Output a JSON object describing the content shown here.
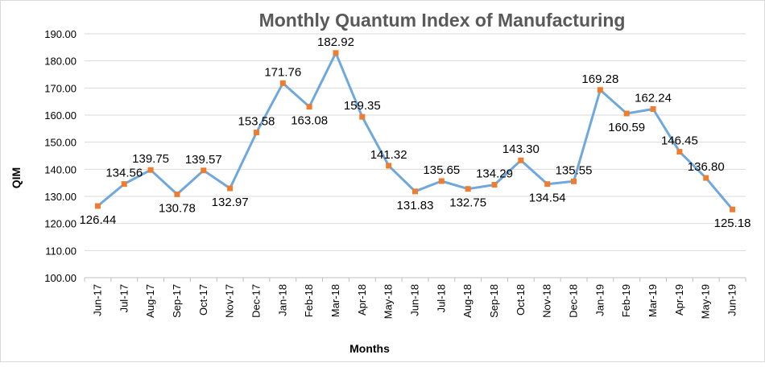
{
  "chart_data": {
    "type": "line",
    "title": "Monthly Quantum Index of Manufacturing",
    "xlabel": "Months",
    "ylabel": "QIM",
    "ylim": [
      100,
      190
    ],
    "yticks": [
      "100.00",
      "110.00",
      "120.00",
      "130.00",
      "140.00",
      "150.00",
      "160.00",
      "170.00",
      "180.00",
      "190.00"
    ],
    "grid": true,
    "legend": "none",
    "categories": [
      "Jun-17",
      "Jul-17",
      "Aug-17",
      "Sep-17",
      "Oct-17",
      "Nov-17",
      "Dec-17",
      "Jan-18",
      "Feb-18",
      "Mar-18",
      "Apr-18",
      "May-18",
      "Jun-18",
      "Jul-18",
      "Aug-18",
      "Sep-18",
      "Oct-18",
      "Nov-18",
      "Dec-18",
      "Jan-19",
      "Feb-19",
      "Mar-19",
      "Apr-19",
      "May-19",
      "Jun-19"
    ],
    "series": [
      {
        "values": [
          126.44,
          134.56,
          139.75,
          130.78,
          139.57,
          132.97,
          153.58,
          171.76,
          163.08,
          182.92,
          159.35,
          141.32,
          131.83,
          135.65,
          132.75,
          134.29,
          143.3,
          134.54,
          135.55,
          169.28,
          160.59,
          162.24,
          146.45,
          136.8,
          125.18
        ],
        "data_labels": [
          "126.44",
          "134.56",
          "139.75",
          "130.78",
          "139.57",
          "132.97",
          "153.58",
          "171.76",
          "163.08",
          "182.92",
          "159.35",
          "141.32",
          "131.83",
          "135.65",
          "132.75",
          "134.29",
          "143.30",
          "134.54",
          "135.55",
          "169.28",
          "160.59",
          "162.24",
          "146.45",
          "136.80",
          "125.18"
        ]
      }
    ],
    "colors": {
      "line": "#6fa8dc",
      "marker": "#ed7d31",
      "grid": "#d9d9d9"
    }
  }
}
